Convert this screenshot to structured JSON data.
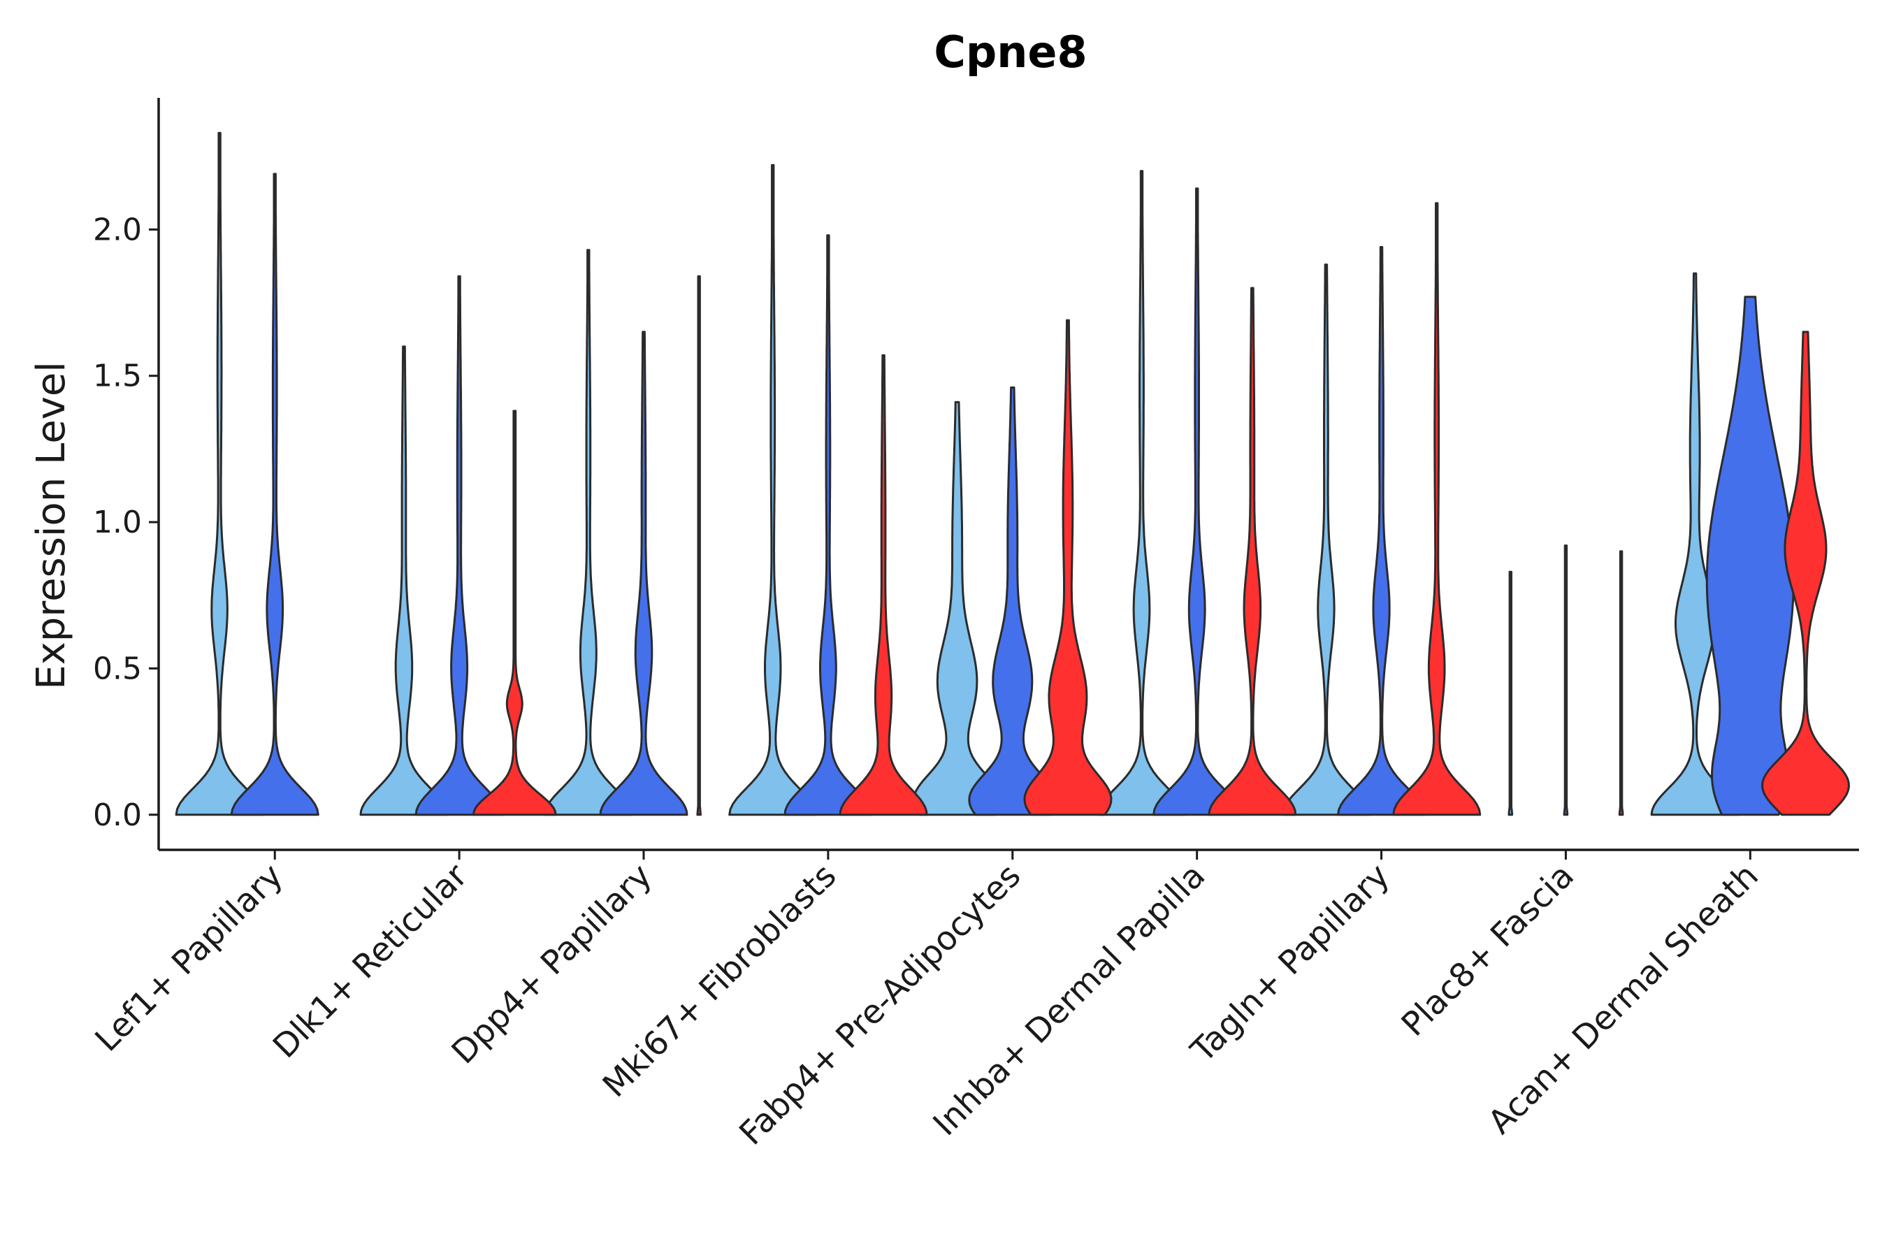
{
  "chart_data": {
    "type": "violin",
    "title": "Cpne8",
    "xlabel": "",
    "ylabel": "Expression Level",
    "ylim": [
      -0.12,
      2.45
    ],
    "yticks": [
      0.0,
      0.5,
      1.0,
      1.5,
      2.0
    ],
    "ytick_labels": [
      "0.0",
      "0.5",
      "1.0",
      "1.5",
      "2.0"
    ],
    "grid": false,
    "legend": "none",
    "colors": {
      "group_a": "#7fc0ec",
      "group_b": "#4470ec",
      "group_c": "#ff3030",
      "outline": "#2b2b2b",
      "axis": "#1a1a1a"
    },
    "categories": [
      "Lef1+ Papillary",
      "Dlk1+ Reticular",
      "Dpp4+ Papillary",
      "Mki67+ Fibroblasts",
      "Fabp4+ Pre-Adipocytes",
      "Inhba+ Dermal Papilla",
      "Tagln+ Papillary",
      "Plac8+ Fascia",
      "Acan+ Dermal Sheath"
    ],
    "series": [
      {
        "name": "group_a",
        "color": "#7fc0ec",
        "max": [
          2.33,
          1.6,
          1.93,
          2.22,
          1.41,
          2.2,
          1.88,
          0.83,
          1.85
        ],
        "profile": [
          "zero_heavy_mode_0.7",
          "zero_heavy_mode_0.5",
          "zero_heavy_mode_0.55",
          "zero_heavy_mode_0.5",
          "bimodal_0.05_0.45",
          "zero_heavy_mode_0.7",
          "zero_heavy_mode_0.7",
          "flat_zero",
          "bimodal_0.0_0.65"
        ]
      },
      {
        "name": "group_b",
        "color": "#4470ec",
        "max": [
          2.19,
          1.84,
          1.65,
          1.98,
          1.46,
          2.14,
          1.94,
          0.92,
          1.77
        ],
        "profile": [
          "zero_heavy_mode_0.7",
          "zero_heavy_mode_0.5",
          "zero_heavy_mode_0.55",
          "zero_heavy_mode_0.5",
          "bimodal_0.05_0.45",
          "zero_heavy_mode_0.7",
          "zero_heavy_mode_0.7",
          "flat_zero",
          "broad_0.8"
        ]
      },
      {
        "name": "group_c",
        "color": "#ff3030",
        "max": [
          null,
          1.38,
          1.84,
          1.57,
          1.69,
          1.8,
          2.09,
          0.9,
          1.65
        ],
        "profile": [
          null,
          "narrow_zero",
          "flat_zero",
          "zero_heavy_mode_0.4",
          "bimodal_0.05_0.4",
          "zero_heavy_mode_0.7",
          "zero_heavy_mode_0.5",
          "flat_zero",
          "bimodal_0.1_0.9"
        ]
      }
    ]
  }
}
